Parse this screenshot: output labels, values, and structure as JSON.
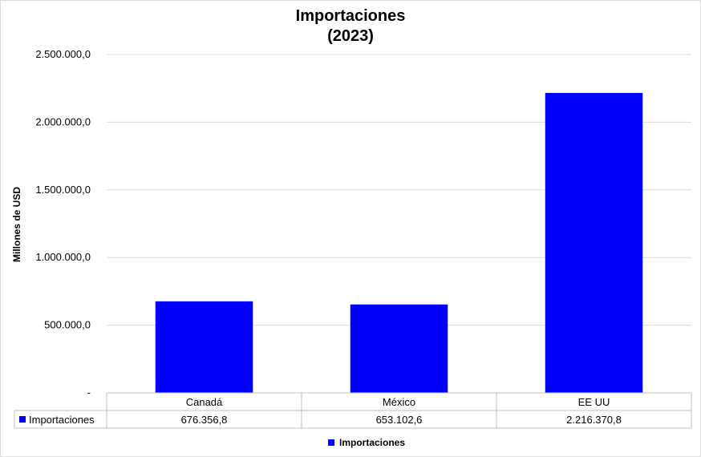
{
  "chart_data": {
    "type": "bar",
    "title": "Importaciones",
    "subtitle": "(2023)",
    "xlabel": "",
    "ylabel": "Millones de USD",
    "ylim": [
      0,
      2500000
    ],
    "y_ticks": [
      {
        "value": 0,
        "label": "-"
      },
      {
        "value": 500000,
        "label": "500.000,0"
      },
      {
        "value": 1000000,
        "label": "1.000.000,0"
      },
      {
        "value": 1500000,
        "label": "1.500.000,0"
      },
      {
        "value": 2000000,
        "label": "2.000.000,0"
      },
      {
        "value": 2500000,
        "label": "2.500.000,0"
      }
    ],
    "categories": [
      "Canadá",
      "México",
      "EE UU"
    ],
    "series": [
      {
        "name": "Importaciones",
        "color": "#0000FF",
        "values": [
          676356.8,
          653102.6,
          2216370.8
        ],
        "value_labels": [
          "676.356,8",
          "653.102,6",
          "2.216.370,8"
        ]
      }
    ],
    "grid": true,
    "legend_position": "bottom",
    "data_table": true
  }
}
